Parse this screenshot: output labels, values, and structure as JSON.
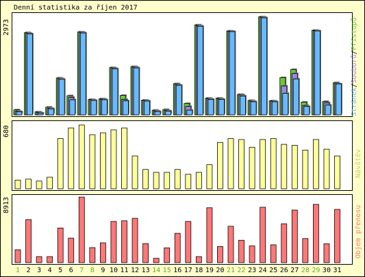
{
  "chart_data": [
    {
      "type": "bar",
      "title": "Denní statistika za říjen 2017",
      "y_max_label": "2973",
      "ylim": [
        0,
        2973
      ],
      "legend_parts": [
        {
          "text": "Stránek",
          "color": "#66bbff"
        },
        {
          "text": "/",
          "color": "#000000"
        },
        {
          "text": "Souborů",
          "color": "#9a8ae6"
        },
        {
          "text": "/",
          "color": "#000000"
        },
        {
          "text": "Přístupů",
          "color": "#66cc33"
        }
      ],
      "series": [
        {
          "name": "Přístupů",
          "color": "#66cc33",
          "values": [
            150,
            2450,
            90,
            230,
            1100,
            570,
            2470,
            460,
            480,
            1410,
            580,
            1440,
            440,
            140,
            160,
            930,
            340,
            2680,
            500,
            500,
            2500,
            610,
            430,
            2920,
            420,
            1110,
            1350,
            380,
            2520,
            400,
            960
          ]
        },
        {
          "name": "Souborů",
          "color": "#9a8ae6",
          "values": [
            110,
            2430,
            70,
            200,
            1080,
            520,
            2460,
            450,
            470,
            1390,
            460,
            1420,
            430,
            120,
            130,
            900,
            250,
            2660,
            480,
            480,
            2490,
            590,
            410,
            2910,
            410,
            860,
            1230,
            280,
            2510,
            360,
            930
          ]
        },
        {
          "name": "Stránek",
          "color": "#66bbff",
          "values": [
            90,
            2410,
            50,
            180,
            1060,
            450,
            2440,
            430,
            450,
            1370,
            420,
            1400,
            410,
            100,
            110,
            880,
            140,
            2640,
            460,
            460,
            2480,
            560,
            390,
            2890,
            390,
            640,
            1070,
            250,
            2500,
            290,
            920
          ]
        }
      ]
    },
    {
      "type": "bar",
      "y_max_label": "680",
      "ylim": [
        0,
        680
      ],
      "legend": "Návštěv",
      "series": [
        {
          "name": "Návštěv",
          "color": "#ffff99",
          "values": [
            90,
            100,
            80,
            120,
            520,
            630,
            660,
            560,
            580,
            610,
            630,
            340,
            200,
            170,
            170,
            200,
            150,
            170,
            250,
            480,
            520,
            510,
            430,
            510,
            520,
            460,
            450,
            400,
            510,
            410,
            340
          ]
        }
      ]
    },
    {
      "type": "bar",
      "y_max_label": "8913",
      "ylim": [
        0,
        8913
      ],
      "legend": "Objem přenosu",
      "series": [
        {
          "name": "Objem přenosu",
          "color": "#ff7777",
          "values": [
            1750,
            5850,
            820,
            820,
            4700,
            3330,
            8900,
            2040,
            2690,
            5590,
            5680,
            6020,
            2590,
            590,
            2010,
            3980,
            5590,
            820,
            7450,
            2200,
            4940,
            3040,
            2270,
            7520,
            2420,
            5280,
            7140,
            3270,
            7910,
            2560,
            7230
          ]
        }
      ]
    }
  ],
  "days": [
    "1",
    "2",
    "3",
    "4",
    "5",
    "6",
    "7",
    "8",
    "9",
    "10",
    "11",
    "12",
    "13",
    "14",
    "15",
    "16",
    "17",
    "18",
    "19",
    "20",
    "21",
    "22",
    "23",
    "24",
    "25",
    "26",
    "27",
    "28",
    "29",
    "30",
    "31"
  ],
  "weekend_days": [
    "1",
    "7",
    "8",
    "14",
    "15",
    "21",
    "22",
    "28",
    "29"
  ],
  "colors": {
    "weekday_label": "#000000",
    "weekend_label": "#66aa22",
    "panel_bg": "#ffffcc",
    "border": "#000000"
  }
}
